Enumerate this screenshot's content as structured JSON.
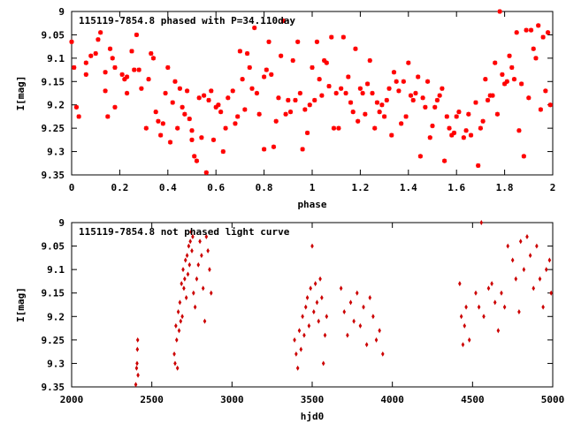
{
  "chart_data": [
    {
      "type": "scatter",
      "title": "115119-7854.8 phased with P=34.110day",
      "xlabel": "phase",
      "ylabel": "I[mag]",
      "xlim": [
        0,
        2
      ],
      "ylim": [
        9.35,
        9.0
      ],
      "y_inverted": true,
      "x_ticks": [
        "0",
        "0.2",
        "0.4",
        "0.6",
        "0.8",
        "1",
        "1.2",
        "1.4",
        "1.6",
        "1.8",
        "2"
      ],
      "y_ticks": [
        "9",
        "9.05",
        "9.1",
        "9.15",
        "9.2",
        "9.25",
        "9.3",
        "9.35"
      ],
      "grid": false,
      "marker_color": "#ff0000",
      "points": [
        [
          0.0,
          9.065
        ],
        [
          0.01,
          9.12
        ],
        [
          0.02,
          9.205
        ],
        [
          0.03,
          9.225
        ],
        [
          0.06,
          9.135
        ],
        [
          0.06,
          9.11
        ],
        [
          0.08,
          9.095
        ],
        [
          0.1,
          9.09
        ],
        [
          0.11,
          9.06
        ],
        [
          0.12,
          9.045
        ],
        [
          0.14,
          9.17
        ],
        [
          0.14,
          9.13
        ],
        [
          0.15,
          9.225
        ],
        [
          0.16,
          9.08
        ],
        [
          0.17,
          9.1
        ],
        [
          0.18,
          9.12
        ],
        [
          0.18,
          9.205
        ],
        [
          0.21,
          9.135
        ],
        [
          0.22,
          9.145
        ],
        [
          0.23,
          9.14
        ],
        [
          0.23,
          9.175
        ],
        [
          0.25,
          9.085
        ],
        [
          0.26,
          9.125
        ],
        [
          0.27,
          9.05
        ],
        [
          0.28,
          9.125
        ],
        [
          0.29,
          9.165
        ],
        [
          0.31,
          9.25
        ],
        [
          0.32,
          9.145
        ],
        [
          0.33,
          9.09
        ],
        [
          0.34,
          9.1
        ],
        [
          0.35,
          9.215
        ],
        [
          0.36,
          9.235
        ],
        [
          0.37,
          9.265
        ],
        [
          0.38,
          9.24
        ],
        [
          0.39,
          9.175
        ],
        [
          0.4,
          9.12
        ],
        [
          0.41,
          9.28
        ],
        [
          0.42,
          9.195
        ],
        [
          0.43,
          9.15
        ],
        [
          0.44,
          9.25
        ],
        [
          0.45,
          9.165
        ],
        [
          0.46,
          9.205
        ],
        [
          0.47,
          9.22
        ],
        [
          0.48,
          9.17
        ],
        [
          0.49,
          9.23
        ],
        [
          0.5,
          9.255
        ],
        [
          0.5,
          9.275
        ],
        [
          0.51,
          9.31
        ],
        [
          0.52,
          9.32
        ],
        [
          0.53,
          9.185
        ],
        [
          0.54,
          9.27
        ],
        [
          0.55,
          9.18
        ],
        [
          0.56,
          9.345
        ],
        [
          0.57,
          9.19
        ],
        [
          0.58,
          9.17
        ],
        [
          0.59,
          9.275
        ],
        [
          0.6,
          9.205
        ],
        [
          0.61,
          9.2
        ],
        [
          0.62,
          9.215
        ],
        [
          0.63,
          9.3
        ],
        [
          0.64,
          9.25
        ],
        [
          0.65,
          9.185
        ],
        [
          0.67,
          9.17
        ],
        [
          0.68,
          9.24
        ],
        [
          0.69,
          9.225
        ],
        [
          0.7,
          9.085
        ],
        [
          0.71,
          9.145
        ],
        [
          0.72,
          9.21
        ],
        [
          0.73,
          9.09
        ],
        [
          0.74,
          9.12
        ],
        [
          0.75,
          9.165
        ],
        [
          0.76,
          9.035
        ],
        [
          0.77,
          9.175
        ],
        [
          0.78,
          9.22
        ],
        [
          0.8,
          9.295
        ],
        [
          0.8,
          9.14
        ],
        [
          0.81,
          9.125
        ],
        [
          0.82,
          9.065
        ],
        [
          0.83,
          9.135
        ],
        [
          0.84,
          9.29
        ],
        [
          0.85,
          9.235
        ],
        [
          0.86,
          9.185
        ],
        [
          0.87,
          9.095
        ],
        [
          0.88,
          9.02
        ],
        [
          0.89,
          9.22
        ],
        [
          0.9,
          9.19
        ],
        [
          0.91,
          9.215
        ],
        [
          0.92,
          9.105
        ],
        [
          0.93,
          9.19
        ],
        [
          0.94,
          9.065
        ],
        [
          0.95,
          9.175
        ],
        [
          0.96,
          9.295
        ],
        [
          0.97,
          9.21
        ],
        [
          0.98,
          9.26
        ],
        [
          0.99,
          9.2
        ],
        [
          1.0,
          9.12
        ],
        [
          1.01,
          9.19
        ],
        [
          1.02,
          9.065
        ],
        [
          1.03,
          9.145
        ],
        [
          1.04,
          9.18
        ],
        [
          1.05,
          9.105
        ],
        [
          1.06,
          9.11
        ],
        [
          1.07,
          9.16
        ],
        [
          1.08,
          9.055
        ],
        [
          1.09,
          9.25
        ],
        [
          1.1,
          9.175
        ],
        [
          1.11,
          9.25
        ],
        [
          1.12,
          9.165
        ],
        [
          1.13,
          9.055
        ],
        [
          1.14,
          9.175
        ],
        [
          1.15,
          9.14
        ],
        [
          1.16,
          9.195
        ],
        [
          1.17,
          9.215
        ],
        [
          1.18,
          9.08
        ],
        [
          1.19,
          9.235
        ],
        [
          1.2,
          9.165
        ],
        [
          1.21,
          9.175
        ],
        [
          1.22,
          9.22
        ],
        [
          1.23,
          9.155
        ],
        [
          1.24,
          9.105
        ],
        [
          1.25,
          9.175
        ],
        [
          1.26,
          9.25
        ],
        [
          1.27,
          9.195
        ],
        [
          1.28,
          9.215
        ],
        [
          1.29,
          9.2
        ],
        [
          1.3,
          9.225
        ],
        [
          1.31,
          9.19
        ],
        [
          1.32,
          9.165
        ],
        [
          1.33,
          9.265
        ],
        [
          1.34,
          9.13
        ],
        [
          1.35,
          9.15
        ],
        [
          1.36,
          9.17
        ],
        [
          1.37,
          9.24
        ],
        [
          1.38,
          9.15
        ],
        [
          1.39,
          9.225
        ],
        [
          1.4,
          9.11
        ],
        [
          1.41,
          9.18
        ],
        [
          1.42,
          9.19
        ],
        [
          1.43,
          9.175
        ],
        [
          1.44,
          9.14
        ],
        [
          1.45,
          9.31
        ],
        [
          1.46,
          9.185
        ],
        [
          1.47,
          9.205
        ],
        [
          1.48,
          9.15
        ],
        [
          1.49,
          9.27
        ],
        [
          1.5,
          9.245
        ],
        [
          1.51,
          9.205
        ],
        [
          1.52,
          9.19
        ],
        [
          1.53,
          9.18
        ],
        [
          1.54,
          9.165
        ],
        [
          1.55,
          9.32
        ],
        [
          1.56,
          9.225
        ],
        [
          1.57,
          9.25
        ],
        [
          1.58,
          9.265
        ],
        [
          1.59,
          9.26
        ],
        [
          1.6,
          9.225
        ],
        [
          1.61,
          9.215
        ],
        [
          1.63,
          9.27
        ],
        [
          1.64,
          9.255
        ],
        [
          1.65,
          9.22
        ],
        [
          1.66,
          9.265
        ],
        [
          1.68,
          9.195
        ],
        [
          1.69,
          9.33
        ],
        [
          1.7,
          9.25
        ],
        [
          1.71,
          9.235
        ],
        [
          1.72,
          9.145
        ],
        [
          1.73,
          9.19
        ],
        [
          1.74,
          9.18
        ],
        [
          1.75,
          9.18
        ],
        [
          1.76,
          9.11
        ],
        [
          1.77,
          9.22
        ],
        [
          1.78,
          9.0
        ],
        [
          1.79,
          9.135
        ],
        [
          1.8,
          9.155
        ],
        [
          1.81,
          9.15
        ],
        [
          1.82,
          9.095
        ],
        [
          1.83,
          9.12
        ],
        [
          1.84,
          9.145
        ],
        [
          1.85,
          9.045
        ],
        [
          1.86,
          9.255
        ],
        [
          1.87,
          9.155
        ],
        [
          1.88,
          9.31
        ],
        [
          1.89,
          9.04
        ],
        [
          1.9,
          9.185
        ],
        [
          1.91,
          9.04
        ],
        [
          1.92,
          9.08
        ],
        [
          1.93,
          9.1
        ],
        [
          1.94,
          9.03
        ],
        [
          1.95,
          9.21
        ],
        [
          1.96,
          9.055
        ],
        [
          1.97,
          9.17
        ],
        [
          1.98,
          9.045
        ],
        [
          1.99,
          9.2
        ]
      ]
    },
    {
      "type": "scatter",
      "title": "115119-7854.8 not phased light curve",
      "xlabel": "hjd0",
      "ylabel": "I[mag]",
      "xlim": [
        2000,
        5000
      ],
      "ylim": [
        9.35,
        9.0
      ],
      "y_inverted": true,
      "x_ticks": [
        "2000",
        "2500",
        "3000",
        "3500",
        "4000",
        "4500",
        "5000"
      ],
      "y_ticks": [
        "9",
        "9.05",
        "9.1",
        "9.15",
        "9.2",
        "9.25",
        "9.3",
        "9.35"
      ],
      "grid": false,
      "marker_color": "#cc0000",
      "points": [
        [
          2400,
          9.345
        ],
        [
          2405,
          9.31
        ],
        [
          2408,
          9.3
        ],
        [
          2410,
          9.27
        ],
        [
          2412,
          9.25
        ],
        [
          2414,
          9.325
        ],
        [
          2640,
          9.28
        ],
        [
          2645,
          9.3
        ],
        [
          2650,
          9.22
        ],
        [
          2655,
          9.25
        ],
        [
          2660,
          9.31
        ],
        [
          2665,
          9.19
        ],
        [
          2670,
          9.23
        ],
        [
          2675,
          9.17
        ],
        [
          2680,
          9.21
        ],
        [
          2685,
          9.13
        ],
        [
          2690,
          9.2
        ],
        [
          2695,
          9.1
        ],
        [
          2700,
          9.14
        ],
        [
          2705,
          9.12
        ],
        [
          2710,
          9.08
        ],
        [
          2715,
          9.16
        ],
        [
          2720,
          9.07
        ],
        [
          2725,
          9.11
        ],
        [
          2730,
          9.05
        ],
        [
          2735,
          9.09
        ],
        [
          2740,
          9.04
        ],
        [
          2745,
          9.02
        ],
        [
          2750,
          9.06
        ],
        [
          2755,
          9.03
        ],
        [
          2760,
          9.15
        ],
        [
          2770,
          9.18
        ],
        [
          2780,
          9.12
        ],
        [
          2790,
          9.09
        ],
        [
          2800,
          9.04
        ],
        [
          2810,
          9.07
        ],
        [
          2820,
          9.14
        ],
        [
          2830,
          9.21
        ],
        [
          2840,
          9.03
        ],
        [
          2850,
          9.06
        ],
        [
          2860,
          9.1
        ],
        [
          2870,
          9.15
        ],
        [
          3390,
          9.25
        ],
        [
          3400,
          9.28
        ],
        [
          3410,
          9.31
        ],
        [
          3420,
          9.23
        ],
        [
          3430,
          9.27
        ],
        [
          3440,
          9.2
        ],
        [
          3450,
          9.24
        ],
        [
          3460,
          9.18
        ],
        [
          3470,
          9.16
        ],
        [
          3480,
          9.22
        ],
        [
          3490,
          9.14
        ],
        [
          3500,
          9.05
        ],
        [
          3510,
          9.19
        ],
        [
          3520,
          9.13
        ],
        [
          3530,
          9.17
        ],
        [
          3540,
          9.21
        ],
        [
          3550,
          9.12
        ],
        [
          3560,
          9.16
        ],
        [
          3570,
          9.3
        ],
        [
          3580,
          9.24
        ],
        [
          3590,
          9.2
        ],
        [
          3680,
          9.14
        ],
        [
          3700,
          9.19
        ],
        [
          3720,
          9.24
        ],
        [
          3740,
          9.17
        ],
        [
          3760,
          9.21
        ],
        [
          3780,
          9.15
        ],
        [
          3800,
          9.22
        ],
        [
          3820,
          9.18
        ],
        [
          3840,
          9.26
        ],
        [
          3860,
          9.16
        ],
        [
          3880,
          9.2
        ],
        [
          3900,
          9.25
        ],
        [
          3920,
          9.23
        ],
        [
          3940,
          9.28
        ],
        [
          4420,
          9.13
        ],
        [
          4430,
          9.2
        ],
        [
          4440,
          9.26
        ],
        [
          4450,
          9.22
        ],
        [
          4460,
          9.18
        ],
        [
          4480,
          9.25
        ],
        [
          4520,
          9.15
        ],
        [
          4540,
          9.18
        ],
        [
          4555,
          9.0
        ],
        [
          4570,
          9.2
        ],
        [
          4600,
          9.14
        ],
        [
          4620,
          9.13
        ],
        [
          4640,
          9.17
        ],
        [
          4660,
          9.23
        ],
        [
          4680,
          9.15
        ],
        [
          4700,
          9.18
        ],
        [
          4720,
          9.05
        ],
        [
          4750,
          9.08
        ],
        [
          4770,
          9.12
        ],
        [
          4790,
          9.19
        ],
        [
          4800,
          9.04
        ],
        [
          4820,
          9.1
        ],
        [
          4840,
          9.03
        ],
        [
          4860,
          9.07
        ],
        [
          4880,
          9.14
        ],
        [
          4900,
          9.05
        ],
        [
          4920,
          9.12
        ],
        [
          4940,
          9.18
        ],
        [
          4960,
          9.1
        ],
        [
          4980,
          9.08
        ],
        [
          4990,
          9.15
        ]
      ]
    }
  ]
}
